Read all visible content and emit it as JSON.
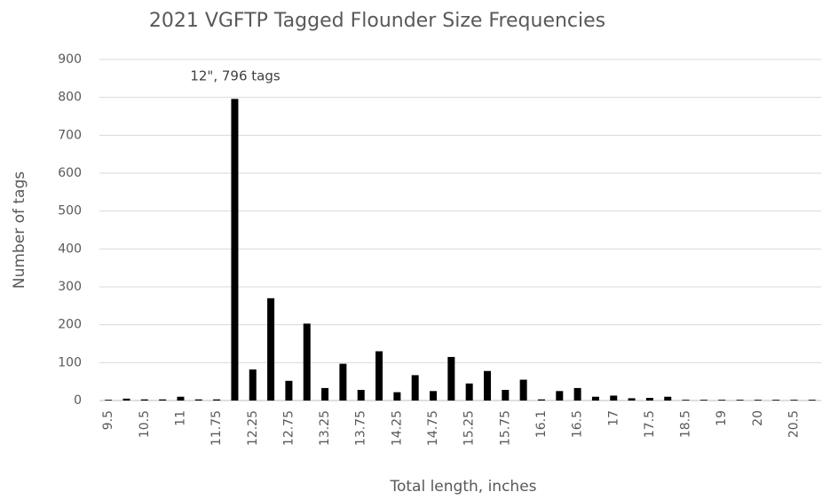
{
  "chart_data": {
    "type": "bar",
    "title": "2021 VGFTP Tagged Flounder Size Frequencies",
    "x_label": "Total length, inches",
    "y_label": "Number of tags",
    "annotation": "12\", 796  tags",
    "categories": [
      "9.5",
      null,
      "10.5",
      null,
      "11",
      null,
      "11.75",
      null,
      "12.25",
      null,
      "12.75",
      null,
      "13.25",
      null,
      "13.75",
      null,
      "14.25",
      null,
      "14.75",
      null,
      "15.25",
      null,
      "15.75",
      null,
      "16.1",
      null,
      "16.5",
      null,
      "17",
      null,
      "17.5",
      null,
      "18.5",
      null,
      "19",
      null,
      "20",
      null,
      "20.5",
      null
    ],
    "values": [
      2,
      5,
      3,
      3,
      10,
      3,
      3,
      796,
      82,
      270,
      52,
      203,
      33,
      97,
      28,
      130,
      22,
      67,
      25,
      115,
      45,
      78,
      28,
      55,
      3,
      25,
      33,
      10,
      13,
      6,
      7,
      10,
      2,
      2,
      2,
      2,
      2,
      2,
      2,
      2
    ],
    "color": "#000000",
    "ylim": [
      0,
      900
    ],
    "yticks": [
      0,
      100,
      200,
      300,
      400,
      500,
      600,
      700,
      800,
      900
    ],
    "grid": true
  }
}
